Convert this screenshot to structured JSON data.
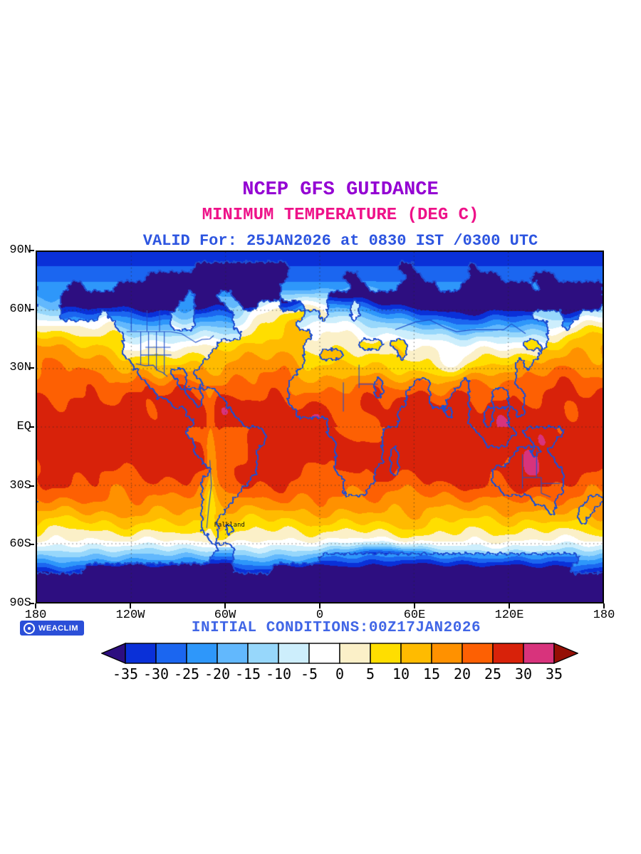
{
  "titles": {
    "line1": "NCEP GFS GUIDANCE",
    "line2": "MINIMUM TEMPERATURE (DEG C)",
    "line3": "VALID For: 25JAN2026 at 0830 IST /0300 UTC"
  },
  "title_colors": {
    "line1": "#9400d3",
    "line2": "#ee1289",
    "line3": "#2d55e0"
  },
  "axes": {
    "lat_labels": [
      "90N",
      "60N",
      "30N",
      "EQ",
      "30S",
      "60S",
      "90S"
    ],
    "lon_labels": [
      "180",
      "120W",
      "60W",
      "0",
      "60E",
      "120E",
      "180"
    ]
  },
  "map_labels": {
    "falkland": "Falkland"
  },
  "map_colors": {
    "coastline": "#1e4fd2",
    "border": "#2050cc",
    "grid": "#444444",
    "frame": "#000000"
  },
  "footer": {
    "logo_text": "WEACLIM",
    "logo_bg": "#2b4fd8",
    "initial_conditions": "INITIAL CONDITIONS:00Z17JAN2026",
    "initial_conditions_color": "#4166e6"
  },
  "colorbar": {
    "tick_labels": [
      "-35",
      "-30",
      "-25",
      "-20",
      "-15",
      "-10",
      "-5",
      "0",
      "5",
      "10",
      "15",
      "20",
      "25",
      "30",
      "35"
    ],
    "colors": [
      "#2d0e80",
      "#0a30d8",
      "#1b66f0",
      "#2e97fa",
      "#62b8fd",
      "#97d7fb",
      "#cdeefc",
      "#ffffff",
      "#fbf0c8",
      "#ffde00",
      "#ffbb00",
      "#ff9100",
      "#fd6003",
      "#d8220a",
      "#d8337c",
      "#950f05"
    ],
    "outline_color": "#000000",
    "label_color": "#000000"
  }
}
